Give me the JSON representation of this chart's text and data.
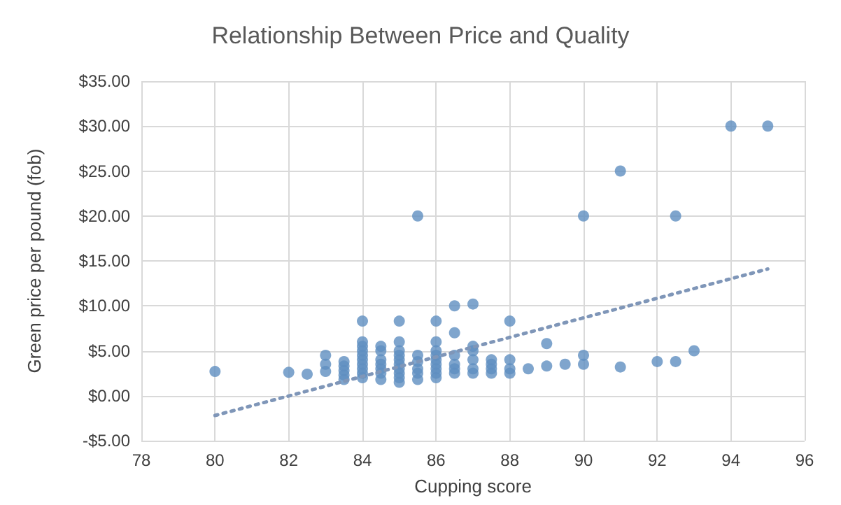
{
  "chart_data": {
    "type": "scatter",
    "title": "Relationship Between Price and Quality",
    "xlabel": "Cupping score",
    "ylabel": "Green price per pound (fob)",
    "series": [
      {
        "color": "#5f8fc0",
        "marker": "circle",
        "x": [
          80,
          82,
          82.5,
          83,
          83,
          83,
          83.5,
          83.5,
          83.5,
          83.5,
          83.5,
          84,
          84,
          84,
          84,
          84,
          84,
          84,
          84,
          84,
          84,
          84.5,
          84.5,
          84.5,
          84.5,
          84.5,
          84.5,
          84.5,
          85,
          85,
          85,
          85,
          85,
          85,
          85,
          85,
          85,
          85,
          85.5,
          85.5,
          85.5,
          85.5,
          85.5,
          85.5,
          86,
          86,
          86,
          86,
          86,
          86,
          86,
          86,
          86,
          86.5,
          86.5,
          86.5,
          86.5,
          86.5,
          86.5,
          87,
          87,
          87,
          87,
          87,
          87,
          87.5,
          87.5,
          87.5,
          87.5,
          88,
          88,
          88,
          88,
          88.5,
          89,
          89,
          89.5,
          90,
          90,
          90,
          91,
          91,
          92,
          92.5,
          92.5,
          93,
          94,
          95
        ],
        "values": [
          2.7,
          2.6,
          2.4,
          4.5,
          3.5,
          2.7,
          1.8,
          2.3,
          2.8,
          3.3,
          3.8,
          8.3,
          2,
          2.5,
          3,
          3.5,
          4,
          4.5,
          5,
          5.5,
          6,
          1.8,
          2.5,
          3,
          3.5,
          4,
          5,
          5.5,
          8.3,
          1.5,
          2,
          2.5,
          3,
          3.5,
          4,
          4.5,
          5,
          6,
          20,
          1.8,
          2.5,
          3,
          3.8,
          4.5,
          8.3,
          2,
          2.5,
          3,
          3.5,
          4,
          4.5,
          5,
          6,
          10,
          7,
          2.5,
          3,
          3.5,
          4.5,
          10.2,
          5.5,
          5,
          2.5,
          3,
          4,
          2.5,
          3,
          3.5,
          4,
          8.3,
          2.5,
          3,
          4,
          3,
          5.8,
          3.3,
          3.5,
          20,
          4.5,
          3.5,
          25,
          3.2,
          3.8,
          20,
          3.8,
          5,
          30,
          30
        ]
      },
      {
        "type": "line",
        "color": "#7f96b8",
        "marker": "none",
        "line_style": "dotted",
        "x": [
          80,
          95
        ],
        "values": [
          -2.2,
          14.1
        ]
      }
    ],
    "xlim": [
      78,
      96
    ],
    "xticks": [
      78,
      80,
      82,
      84,
      86,
      88,
      90,
      92,
      94,
      96
    ],
    "ylim": [
      -5,
      35
    ],
    "yticks": [
      {
        "value": -5,
        "label": "-$5.00"
      },
      {
        "value": 0,
        "label": "$0.00"
      },
      {
        "value": 5,
        "label": "$5.00"
      },
      {
        "value": 10,
        "label": "$10.00"
      },
      {
        "value": 15,
        "label": "$15.00"
      },
      {
        "value": 20,
        "label": "$20.00"
      },
      {
        "value": 25,
        "label": "$25.00"
      },
      {
        "value": 30,
        "label": "$30.00"
      },
      {
        "value": 35,
        "label": "$35.00"
      }
    ],
    "grid": true
  }
}
